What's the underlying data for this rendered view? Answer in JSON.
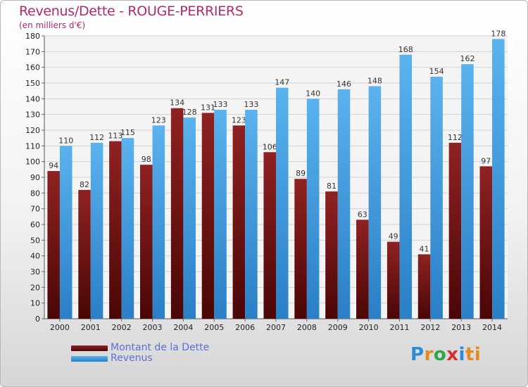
{
  "header": {
    "title": "Revenus/Dette - ROUGE-PERRIERS",
    "subtitle": "(en milliers d'€)"
  },
  "logo": {
    "text": "Proxiti",
    "letters": [
      "P",
      "r",
      "o",
      "x",
      "i",
      "ti"
    ]
  },
  "legend": [
    {
      "label": "Montant de la Dette",
      "color": "#7a1414"
    },
    {
      "label": "Revenus",
      "color": "#3c98dc"
    }
  ],
  "chart_data": {
    "type": "bar",
    "title": "Revenus/Dette - ROUGE-PERRIERS",
    "subtitle": "(en milliers d'€)",
    "categories": [
      "2000",
      "2001",
      "2002",
      "2003",
      "2004",
      "2005",
      "2006",
      "2007",
      "2008",
      "2009",
      "2010",
      "2011",
      "2012",
      "2013",
      "2014"
    ],
    "series": [
      {
        "name": "Montant de la Dette",
        "color": "#7a1414",
        "values": [
          94,
          82,
          113,
          98,
          134,
          131,
          123,
          106,
          89,
          81,
          63,
          49,
          41,
          112,
          97
        ]
      },
      {
        "name": "Revenus",
        "color": "#3c98dc",
        "values": [
          110,
          112,
          115,
          123,
          128,
          133,
          133,
          147,
          140,
          146,
          148,
          168,
          154,
          162,
          178
        ]
      }
    ],
    "ylim": [
      0,
      180
    ],
    "ytick_step": 10,
    "grid": true,
    "legend_position": "bottom-left",
    "xlabel": "",
    "ylabel": ""
  }
}
